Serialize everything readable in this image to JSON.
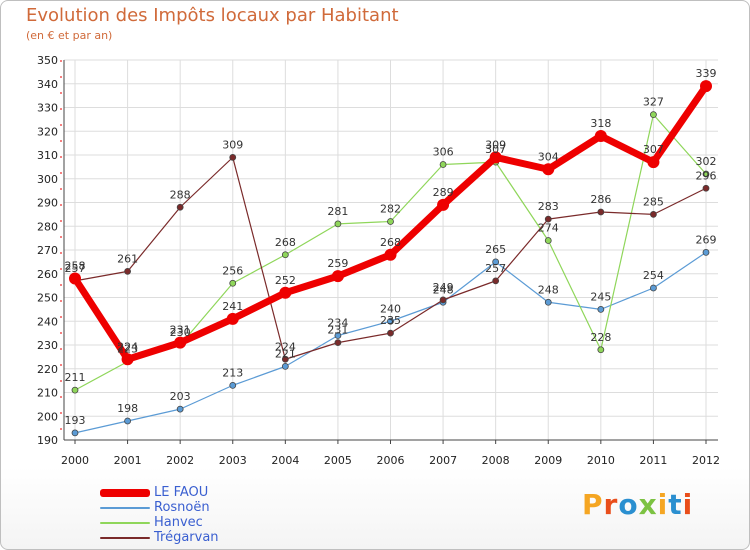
{
  "title": "Evolution des Impôts locaux par Habitant",
  "subtitle": "(en € et par an)",
  "brand": {
    "text": "Proxiti",
    "colors": [
      "#f5a623",
      "#e94e1b",
      "#2a8fd0",
      "#7cc242",
      "#f5a623",
      "#2a8fd0",
      "#e94e1b"
    ]
  },
  "chart_data": {
    "type": "line",
    "title": "Evolution des Impôts locaux par Habitant",
    "subtitle": "(en € et par an)",
    "xlabel": "",
    "ylabel": "",
    "categories": [
      "2000",
      "2001",
      "2002",
      "2003",
      "2004",
      "2005",
      "2006",
      "2007",
      "2008",
      "2009",
      "2010",
      "2011",
      "2012"
    ],
    "ylim": [
      190,
      350
    ],
    "yticks": [
      190,
      200,
      210,
      220,
      230,
      240,
      250,
      260,
      270,
      280,
      290,
      300,
      310,
      320,
      330,
      340,
      350
    ],
    "grid": true,
    "legend": "bottom-left",
    "series": [
      {
        "name": "Rosnoën",
        "color": "#5b9bd5",
        "values": [
          193,
          198,
          203,
          213,
          221,
          234,
          240,
          248,
          265,
          248,
          245,
          254,
          269
        ]
      },
      {
        "name": "Hanvec",
        "color": "#8fd65a",
        "values": [
          211,
          223,
          230,
          256,
          268,
          281,
          282,
          306,
          307,
          274,
          228,
          327,
          302
        ]
      },
      {
        "name": "Trégarvan",
        "color": "#7a2a2a",
        "values": [
          257,
          261,
          288,
          309,
          224,
          231,
          235,
          249,
          257,
          283,
          286,
          285,
          296
        ]
      },
      {
        "name": "LE FAOU",
        "color": "#ee0000",
        "values": [
          258,
          224,
          231,
          241,
          252,
          259,
          268,
          289,
          309,
          304,
          318,
          307,
          339
        ]
      }
    ]
  }
}
